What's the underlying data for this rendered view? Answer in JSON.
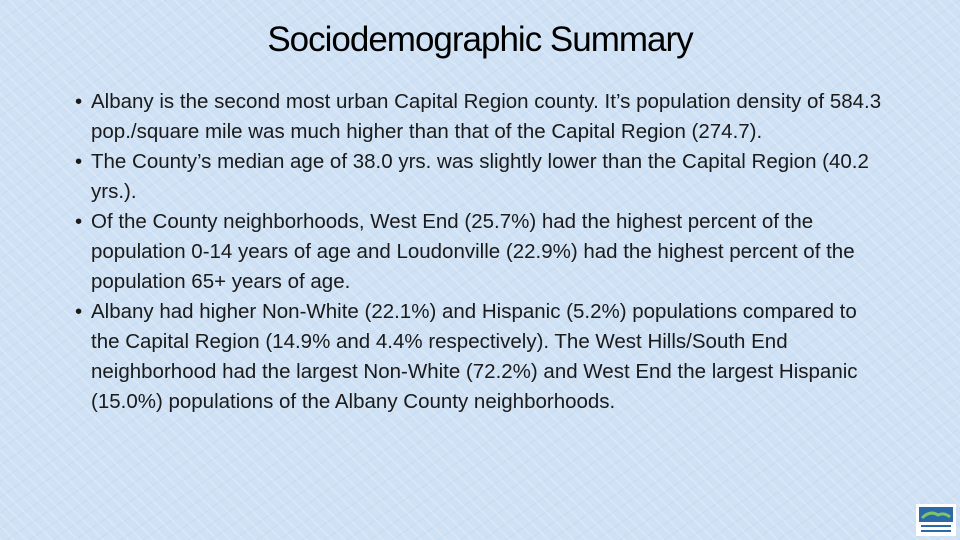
{
  "title": "Sociodemographic Summary",
  "bullets": [
    "Albany is the second most urban Capital Region county. It’s population density of 584.3 pop./square mile was much higher than that of the Capital Region (274.7).",
    "The County’s median age of 38.0 yrs. was slightly lower than the Capital Region (40.2 yrs.).",
    "Of the County neighborhoods, West End (25.7%) had the highest percent of the population 0-14 years of age and Loudonville (22.9%) had the highest percent of the population 65+ years of age.",
    "Albany had higher Non-White (22.1%) and Hispanic (5.2%) populations compared to the Capital Region (14.9% and 4.4% respectively). The West Hills/South End neighborhood had the largest Non-White (72.2%) and West End the largest Hispanic (15.0%) populations of the Albany County neighborhoods."
  ]
}
